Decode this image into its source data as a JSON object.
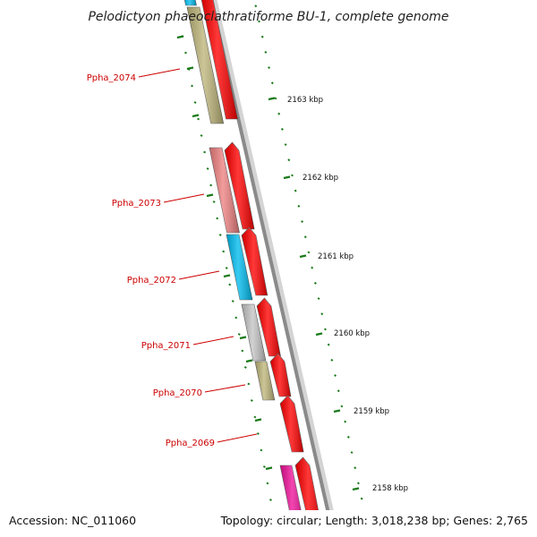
{
  "title": "Pelodictyon phaeoclathratiforme BU-1, complete genome",
  "footer": {
    "accession": "Accession: NC_011060",
    "summary": "Topology: circular; Length: 3,018,238 bp; Genes: 2,765"
  },
  "scale_labels": [
    "2163 kbp",
    "2162 kbp",
    "2161 kbp",
    "2160 kbp",
    "2159 kbp",
    "2158 kbp"
  ],
  "gene_labels": [
    "Ppha_2074",
    "Ppha_2073",
    "Ppha_2072",
    "Ppha_2071",
    "Ppha_2070",
    "Ppha_2069"
  ],
  "colors": {
    "label_red": "#cc0000",
    "forward_strand": "#ff0000",
    "ticks": "#1a7a1a",
    "backbone": "#8a8a8a",
    "cog_olive": "#bdb57a",
    "cog_salmon": "#ee8080",
    "cog_cyan": "#00bbee",
    "cog_grey": "#c4c4c4",
    "cog_magenta": "#ee1199",
    "cog_lime": "#99ee33"
  }
}
